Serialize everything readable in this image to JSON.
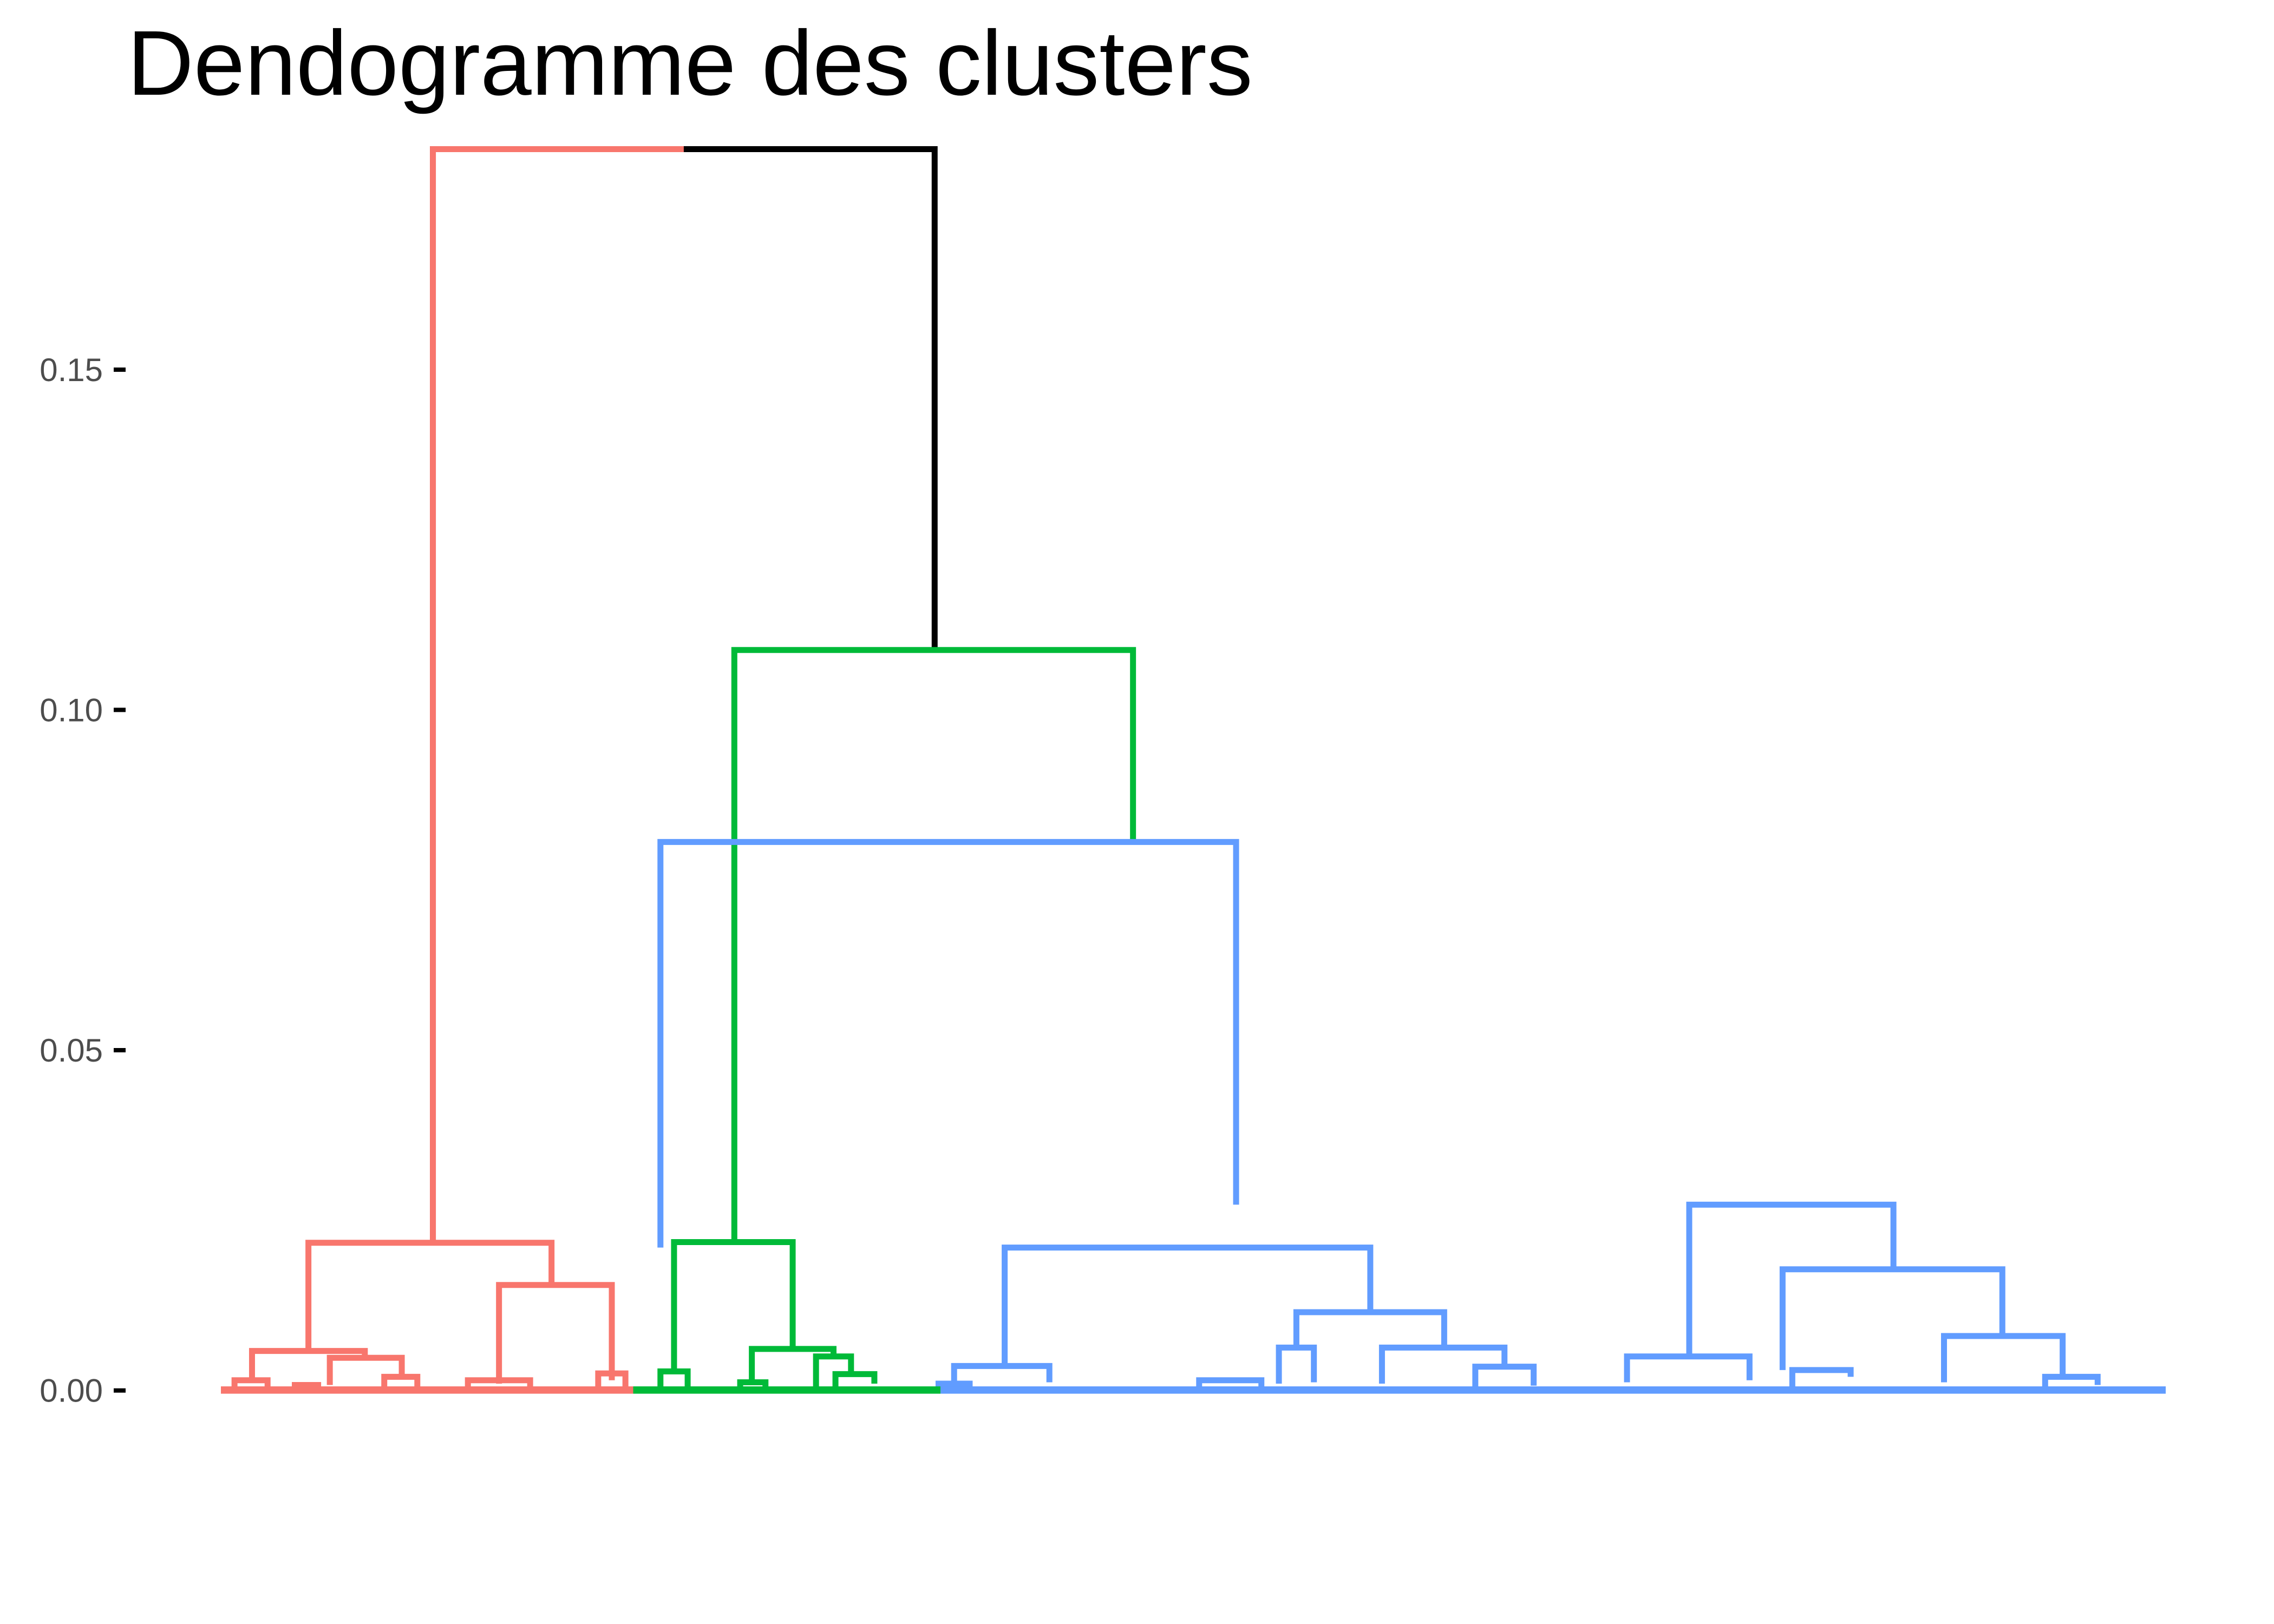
{
  "chart_data": {
    "type": "dendrogram",
    "title": "Dendogramme des clusters",
    "xlabel": "",
    "ylabel": "",
    "yticks": [
      "0.00",
      "0.05",
      "0.10",
      "0.15"
    ],
    "tick_values": [
      0,
      0.05,
      0.1,
      0.15
    ],
    "ylim": [
      -0.02,
      0.19
    ],
    "x_range": [
      0,
      100
    ],
    "grid": false,
    "legend": "none",
    "clusters": [
      {
        "color": "#F8766D"
      },
      {
        "color": "#00BA38"
      },
      {
        "color": "#619CFF"
      }
    ],
    "root_color": "#000000",
    "merges": [
      {
        "c": 3,
        "x1": 10.9,
        "x2": 36.7,
        "h": 0.1824,
        "y1": 0.0217,
        "y2": 0.1088
      },
      {
        "c": 1,
        "x1": 26.4,
        "x2": 46.9,
        "h": 0.1088,
        "y1": 0.0218,
        "y2": 0.0806
      },
      {
        "c": 2,
        "x1": 22.6,
        "x2": 52.2,
        "h": 0.0806,
        "y1": 0.021,
        "y2": 0.0273
      },
      {
        "c": 0,
        "x1": 4.5,
        "x2": 17.0,
        "h": 0.0217,
        "y1": 0.0058,
        "y2": 0.0155
      },
      {
        "c": 0,
        "x1": 14.3,
        "x2": 20.1,
        "h": 0.0155,
        "y1": 0.001,
        "y2": 0.0015
      },
      {
        "c": 0,
        "x1": 1.6,
        "x2": 7.4,
        "h": 0.0058,
        "y1": 0.0015,
        "y2": 0.0048
      },
      {
        "c": 0,
        "x1": 5.6,
        "x2": 9.3,
        "h": 0.0048,
        "y1": 0.0008,
        "y2": 0.002
      },
      {
        "c": 0,
        "x1": 0.7,
        "x2": 2.4,
        "h": 0.0015,
        "y1": 0.0,
        "y2": 0.0005
      },
      {
        "c": 0,
        "x1": 3.8,
        "x2": 5.0,
        "h": 0.0008,
        "y1": 0.0,
        "y2": 0.0003
      },
      {
        "c": 0,
        "x1": 8.4,
        "x2": 10.1,
        "h": 0.002,
        "y1": 0.0004,
        "y2": 0.0003
      },
      {
        "c": 0,
        "x1": 12.7,
        "x2": 15.9,
        "h": 0.0015,
        "y1": 0.0003,
        "y2": 0.0005
      },
      {
        "c": 0,
        "x1": 19.4,
        "x2": 20.8,
        "h": 0.0025,
        "y1": 0.0,
        "y2": 0.0004
      },
      {
        "c": 1,
        "x1": 23.3,
        "x2": 29.4,
        "h": 0.0218,
        "y1": 0.0028,
        "y2": 0.0061
      },
      {
        "c": 1,
        "x1": 22.6,
        "x2": 24.0,
        "h": 0.0028,
        "y1": 0.0,
        "y2": 0.0004
      },
      {
        "c": 1,
        "x1": 27.3,
        "x2": 31.5,
        "h": 0.0061,
        "y1": 0.0012,
        "y2": 0.005
      },
      {
        "c": 1,
        "x1": 30.6,
        "x2": 32.4,
        "h": 0.005,
        "y1": 0.0,
        "y2": 0.0024
      },
      {
        "c": 1,
        "x1": 31.6,
        "x2": 33.6,
        "h": 0.0024,
        "y1": 0.0004,
        "y2": 0.001
      },
      {
        "c": 1,
        "x1": 26.7,
        "x2": 28.0,
        "h": 0.0012,
        "y1": 0.0,
        "y2": 0.0003
      },
      {
        "c": 2,
        "x1": 40.3,
        "x2": 59.1,
        "h": 0.021,
        "y1": 0.0036,
        "y2": 0.0115
      },
      {
        "c": 2,
        "x1": 37.7,
        "x2": 42.6,
        "h": 0.0036,
        "y1": 0.001,
        "y2": 0.0012
      },
      {
        "c": 2,
        "x1": 36.9,
        "x2": 38.5,
        "h": 0.001,
        "y1": 0.0,
        "y2": 0.0003
      },
      {
        "c": 2,
        "x1": 55.3,
        "x2": 62.9,
        "h": 0.0115,
        "y1": 0.0063,
        "y2": 0.0063
      },
      {
        "c": 2,
        "x1": 54.4,
        "x2": 56.2,
        "h": 0.0063,
        "y1": 0.001,
        "y2": 0.0012
      },
      {
        "c": 2,
        "x1": 59.7,
        "x2": 66.0,
        "h": 0.0063,
        "y1": 0.001,
        "y2": 0.0035
      },
      {
        "c": 2,
        "x1": 64.5,
        "x2": 67.5,
        "h": 0.0035,
        "y1": 0.0005,
        "y2": 0.0007
      },
      {
        "c": 2,
        "x1": 50.3,
        "x2": 53.5,
        "h": 0.0015,
        "y1": 0.0,
        "y2": 0.0004
      },
      {
        "c": 2,
        "x1": 75.5,
        "x2": 86.0,
        "h": 0.0273,
        "y1": 0.005,
        "y2": 0.0178
      },
      {
        "c": 2,
        "x1": 72.3,
        "x2": 78.6,
        "h": 0.005,
        "y1": 0.0012,
        "y2": 0.0015
      },
      {
        "c": 2,
        "x1": 80.3,
        "x2": 91.6,
        "h": 0.0178,
        "y1": 0.003,
        "y2": 0.008
      },
      {
        "c": 2,
        "x1": 80.8,
        "x2": 83.8,
        "h": 0.003,
        "y1": 0.0005,
        "y2": 0.002
      },
      {
        "c": 2,
        "x1": 88.6,
        "x2": 94.7,
        "h": 0.008,
        "y1": 0.0012,
        "y2": 0.002
      },
      {
        "c": 2,
        "x1": 93.8,
        "x2": 96.5,
        "h": 0.002,
        "y1": 0.0004,
        "y2": 0.0008
      }
    ]
  }
}
